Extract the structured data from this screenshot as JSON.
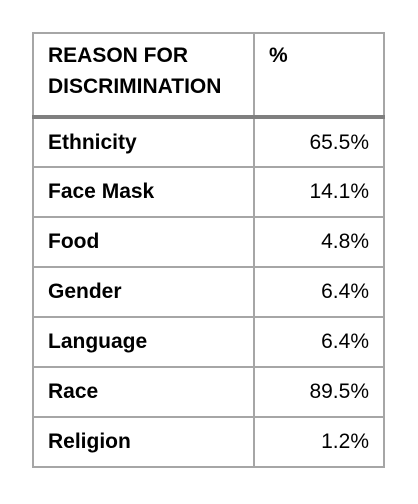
{
  "table": {
    "headers": [
      "REASON FOR DISCRIMINATION",
      "%"
    ],
    "rows": [
      {
        "reason": "Ethnicity",
        "percent": "65.5%"
      },
      {
        "reason": "Face Mask",
        "percent": "14.1%"
      },
      {
        "reason": "Food",
        "percent": "4.8%"
      },
      {
        "reason": "Gender",
        "percent": "6.4%"
      },
      {
        "reason": "Language",
        "percent": "6.4%"
      },
      {
        "reason": "Race",
        "percent": "89.5%"
      },
      {
        "reason": "Religion",
        "percent": "1.2%"
      }
    ]
  },
  "colors": {
    "border": "#a6a6a6",
    "header_rule": "#7f7f7f",
    "text": "#000000"
  }
}
